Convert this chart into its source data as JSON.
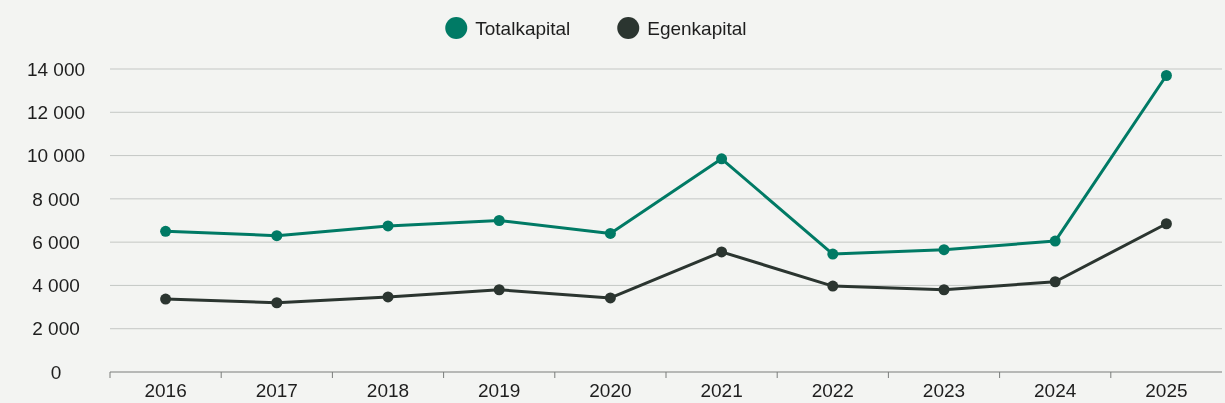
{
  "chart_data": {
    "type": "line",
    "categories": [
      "2016",
      "2017",
      "2018",
      "2019",
      "2020",
      "2021",
      "2022",
      "2023",
      "2024",
      "2025"
    ],
    "series": [
      {
        "name": "Totalkapital",
        "color": "#007a65",
        "values": [
          6500,
          6300,
          6750,
          7000,
          6400,
          9850,
          5450,
          5650,
          6050,
          13700
        ]
      },
      {
        "name": "Egenkapital",
        "color": "#2b3530",
        "values": [
          3370,
          3200,
          3470,
          3800,
          3420,
          5550,
          3970,
          3800,
          4170,
          6850
        ]
      }
    ],
    "ylim": [
      0,
      14000
    ],
    "yticks": [
      0,
      {
        "value": 2000,
        "label": "2 000"
      },
      {
        "value": 4000,
        "label": "4 000"
      },
      {
        "value": 6000,
        "label": "6 000"
      },
      {
        "value": 8000,
        "label": "8 000"
      },
      {
        "value": 10000,
        "label": "10 000"
      },
      {
        "value": 12000,
        "label": "12 000"
      },
      {
        "value": 14000,
        "label": "14 000"
      }
    ],
    "grid": "y",
    "legend": "top",
    "marker": "circle",
    "line_style": "solid"
  }
}
